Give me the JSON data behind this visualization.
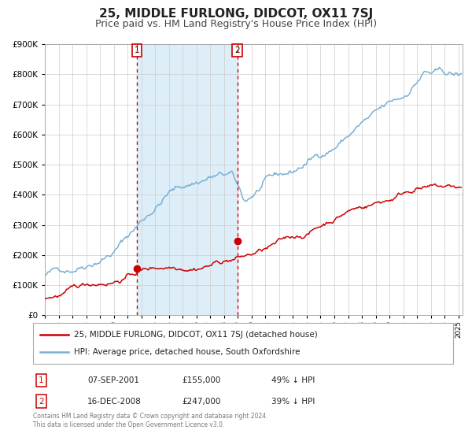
{
  "title": "25, MIDDLE FURLONG, DIDCOT, OX11 7SJ",
  "subtitle": "Price paid vs. HM Land Registry's House Price Index (HPI)",
  "legend_label_red": "25, MIDDLE FURLONG, DIDCOT, OX11 7SJ (detached house)",
  "legend_label_blue": "HPI: Average price, detached house, South Oxfordshire",
  "transaction1_label": "1",
  "transaction1_date": "07-SEP-2001",
  "transaction1_price": "£155,000",
  "transaction1_hpi": "49% ↓ HPI",
  "transaction1_year": 2001.69,
  "transaction1_value": 155000,
  "transaction2_label": "2",
  "transaction2_date": "16-DEC-2008",
  "transaction2_price": "£247,000",
  "transaction2_hpi": "39% ↓ HPI",
  "transaction2_year": 2008.96,
  "transaction2_value": 247000,
  "footnote1": "Contains HM Land Registry data © Crown copyright and database right 2024.",
  "footnote2": "This data is licensed under the Open Government Licence v3.0.",
  "ylim": [
    0,
    900000
  ],
  "xlim_start": 1995.0,
  "xlim_end": 2025.3,
  "red_color": "#cc0000",
  "blue_color": "#7ab0d4",
  "shade_color": "#ddeef8",
  "grid_color": "#cccccc",
  "title_fontsize": 11,
  "subtitle_fontsize": 9
}
